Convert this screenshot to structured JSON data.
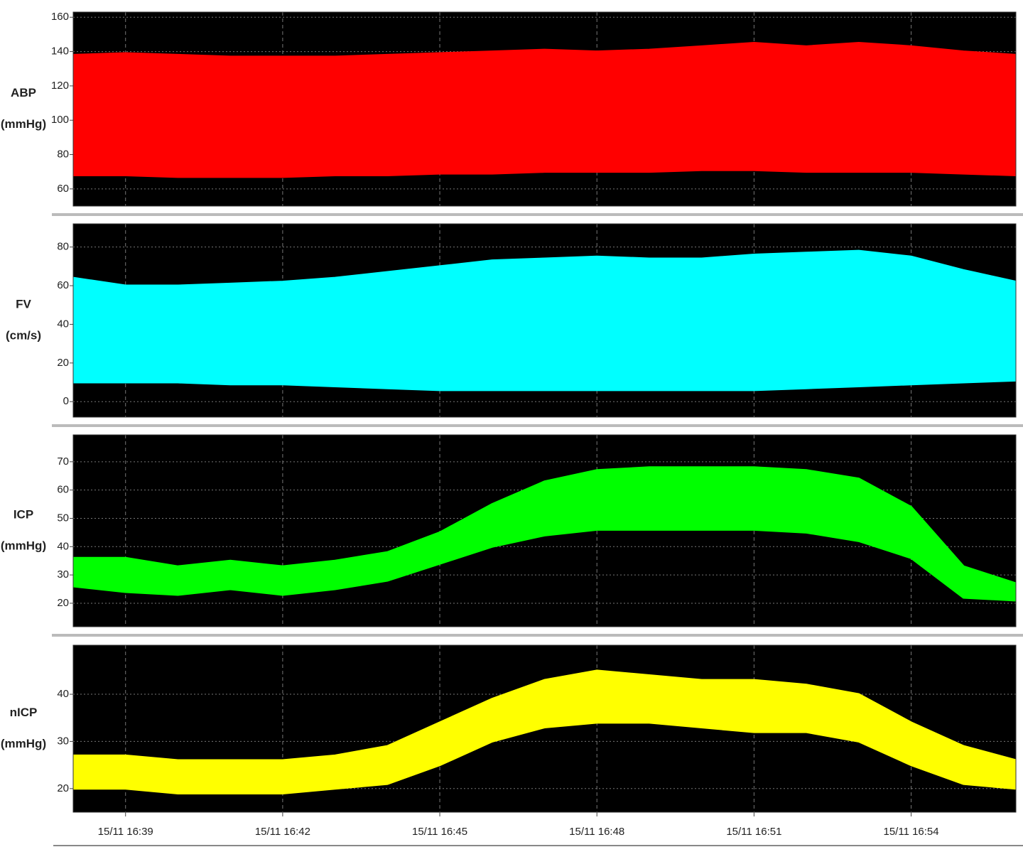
{
  "chart_data": [
    {
      "type": "band",
      "ylabel": "ABP",
      "yunit": "(mmHg)",
      "ylim": [
        50,
        163
      ],
      "yticks": [
        60,
        80,
        100,
        120,
        140,
        160
      ],
      "grid": true,
      "band": {
        "color": "#ff0000",
        "upper": [
          138,
          139,
          138,
          137,
          137,
          137,
          138,
          139,
          140,
          141,
          140,
          141,
          143,
          145,
          143,
          145,
          143,
          140,
          138
        ],
        "lower": [
          68,
          68,
          67,
          67,
          67,
          68,
          68,
          69,
          69,
          70,
          70,
          70,
          71,
          71,
          70,
          70,
          70,
          69,
          68
        ]
      }
    },
    {
      "type": "band",
      "ylabel": "FV",
      "yunit": "(cm/s)",
      "ylim": [
        -8,
        92
      ],
      "yticks": [
        0,
        20,
        40,
        60,
        80
      ],
      "grid": true,
      "band": {
        "color": "#00ffff",
        "upper": [
          64,
          60,
          60,
          61,
          62,
          64,
          67,
          70,
          73,
          74,
          75,
          74,
          74,
          76,
          77,
          78,
          75,
          68,
          62
        ],
        "lower": [
          10,
          10,
          10,
          9,
          9,
          8,
          7,
          6,
          6,
          6,
          6,
          6,
          6,
          6,
          7,
          8,
          9,
          10,
          11
        ]
      }
    },
    {
      "type": "band",
      "ylabel": "ICP",
      "yunit": "(mmHg)",
      "ylim": [
        11.7,
        79.5
      ],
      "yticks": [
        20,
        30,
        40,
        50,
        60,
        70
      ],
      "grid": true,
      "band": {
        "color": "#00ff00",
        "upper": [
          36,
          36,
          33,
          35,
          33,
          35,
          38,
          45,
          55,
          63,
          67,
          68,
          68,
          68,
          67,
          64,
          54,
          33,
          27
        ],
        "lower": [
          26,
          24,
          23,
          25,
          23,
          25,
          28,
          34,
          40,
          44,
          46,
          46,
          46,
          46,
          45,
          42,
          36,
          22,
          21
        ]
      }
    },
    {
      "type": "band",
      "ylabel": "nICP",
      "yunit": "(mmHg)",
      "ylim": [
        15,
        50.4
      ],
      "yticks": [
        20,
        30,
        40
      ],
      "grid": true,
      "x": [
        "15/11 16:38",
        "15/11 16:39",
        "15/11 16:40",
        "15/11 16:41",
        "15/11 16:42",
        "15/11 16:43",
        "15/11 16:44",
        "15/11 16:45",
        "15/11 16:46",
        "15/11 16:47",
        "15/11 16:48",
        "15/11 16:49",
        "15/11 16:50",
        "15/11 16:51",
        "15/11 16:52",
        "15/11 16:53",
        "15/11 16:54",
        "15/11 16:55",
        "15/11 16:56"
      ],
      "xlim": [
        "15/11 16:38",
        "15/11 16:56"
      ],
      "xticks": [
        "15/11 16:39",
        "15/11 16:42",
        "15/11 16:45",
        "15/11 16:48",
        "15/11 16:51",
        "15/11 16:54"
      ],
      "band": {
        "color": "#ffff00",
        "upper": [
          27,
          27,
          26,
          26,
          26,
          27,
          29,
          34,
          39,
          43,
          45,
          44,
          43,
          43,
          42,
          40,
          34,
          29,
          26
        ],
        "lower": [
          20,
          20,
          19,
          19,
          19,
          20,
          21,
          25,
          30,
          33,
          34,
          34,
          33,
          32,
          32,
          30,
          25,
          21,
          20
        ]
      }
    }
  ]
}
